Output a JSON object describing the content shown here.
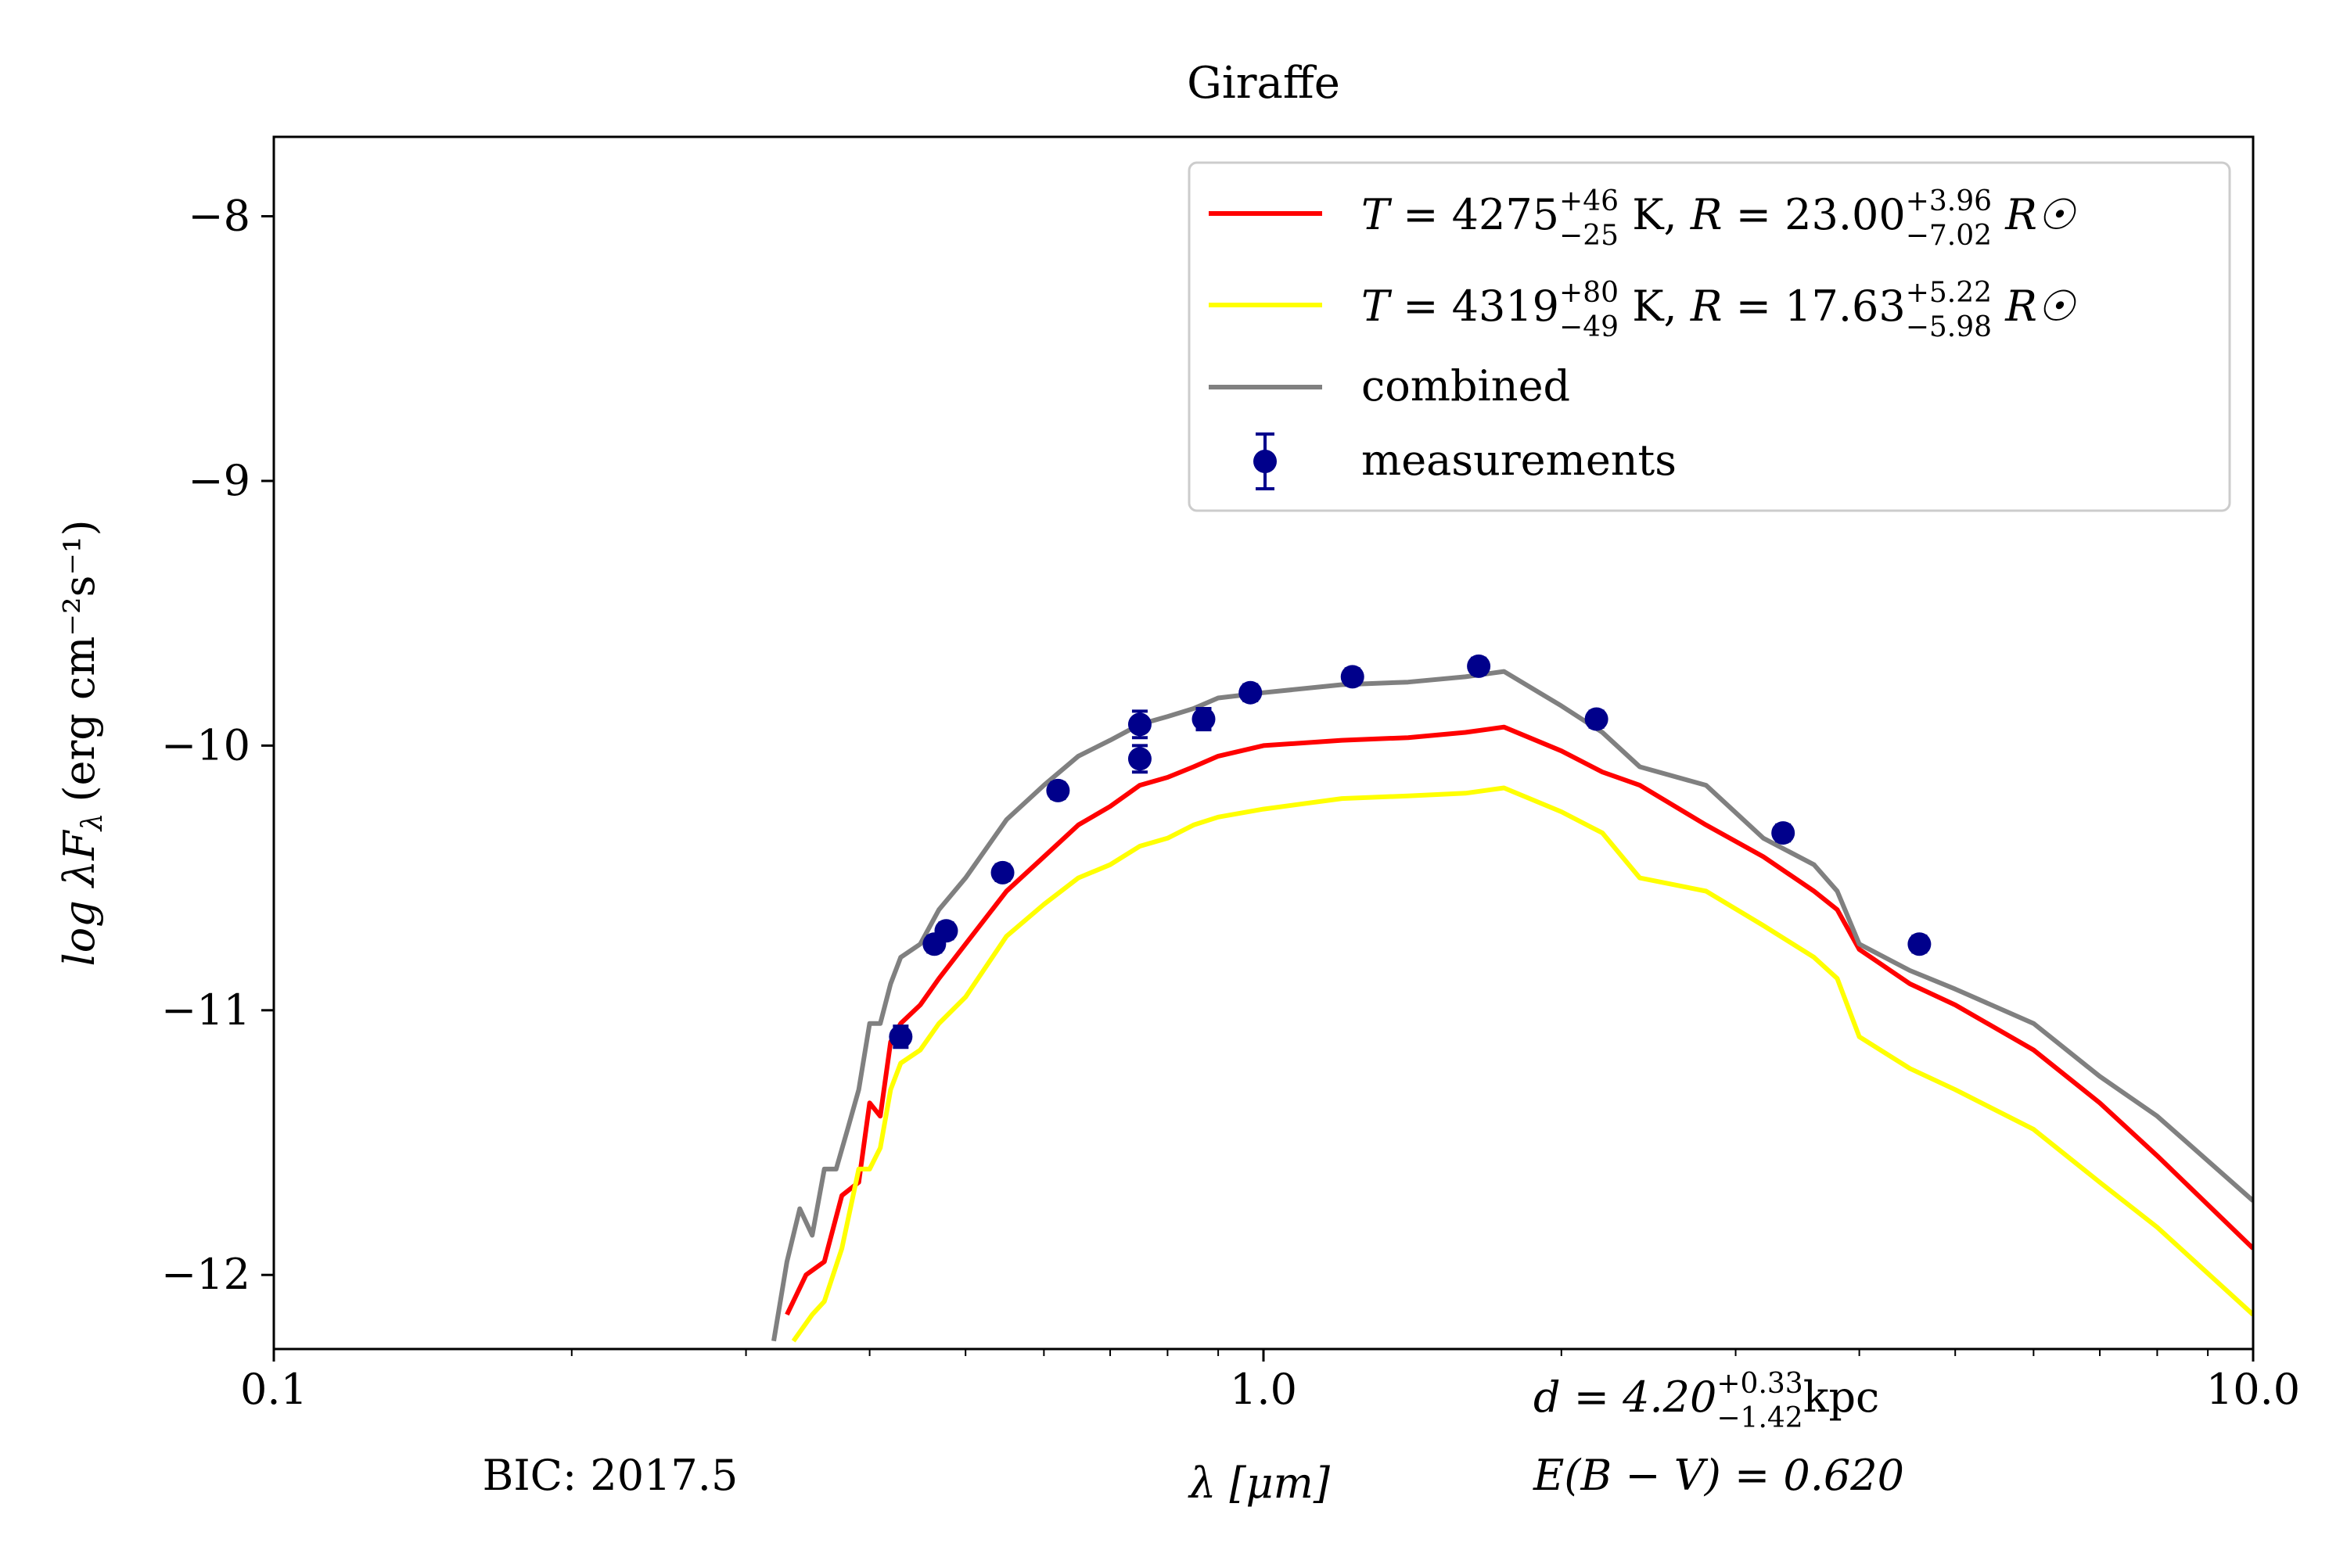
{
  "chart_data": {
    "type": "line",
    "title": "Giraffe",
    "xlabel": "λ [μm]",
    "ylabel": "log λF",
    "ylabel_sub": "λ",
    "ylabel_unit": "(erg cm⁻²s⁻¹)",
    "x_scale": "log",
    "xlim": [
      0.1,
      10.0
    ],
    "ylim": [
      -12.28,
      -7.7
    ],
    "x_ticks": [
      {
        "value": 0.1,
        "label": "0.1"
      },
      {
        "value": 1.0,
        "label": "1.0"
      },
      {
        "value": 10.0,
        "label": "10.0"
      }
    ],
    "y_ticks": [
      {
        "value": -8,
        "label": "−8"
      },
      {
        "value": -9,
        "label": "−9"
      },
      {
        "value": -10,
        "label": "−10"
      },
      {
        "value": -11,
        "label": "−11"
      },
      {
        "value": -12,
        "label": "−12"
      }
    ],
    "grid": false,
    "legend_position": "top-right",
    "series": [
      {
        "name": "T = 4275 K, R = 23.00 R☉",
        "legend": {
          "T": "4275",
          "T_up": "+46",
          "T_lo": "−25",
          "R": "23.00",
          "R_up": "+3.96",
          "R_lo": "−7.02"
        },
        "color": "#ff0000",
        "x": [
          0.33,
          0.345,
          0.36,
          0.375,
          0.39,
          0.4,
          0.41,
          0.42,
          0.43,
          0.45,
          0.47,
          0.5,
          0.55,
          0.6,
          0.65,
          0.7,
          0.75,
          0.8,
          0.85,
          0.9,
          1.0,
          1.2,
          1.4,
          1.6,
          1.75,
          2.0,
          2.2,
          2.4,
          2.8,
          3.2,
          3.6,
          3.8,
          4.0,
          4.5,
          5.0,
          6.0,
          7.0,
          8.0,
          10.0
        ],
        "y": [
          -12.15,
          -12.0,
          -11.95,
          -11.7,
          -11.65,
          -11.35,
          -11.4,
          -11.12,
          -11.05,
          -10.98,
          -10.88,
          -10.75,
          -10.55,
          -10.42,
          -10.3,
          -10.23,
          -10.15,
          -10.12,
          -10.08,
          -10.04,
          -10.0,
          -9.98,
          -9.97,
          -9.95,
          -9.93,
          -10.02,
          -10.1,
          -10.15,
          -10.3,
          -10.42,
          -10.55,
          -10.62,
          -10.77,
          -10.9,
          -10.98,
          -11.15,
          -11.35,
          -11.55,
          -11.9
        ]
      },
      {
        "name": "T = 4319 K, R = 17.63 R☉",
        "legend": {
          "T": "4319",
          "T_up": "+80",
          "T_lo": "−49",
          "R": "17.63",
          "R_up": "+5.22",
          "R_lo": "−5.98"
        },
        "color": "#ffff00",
        "x": [
          0.335,
          0.35,
          0.36,
          0.375,
          0.39,
          0.4,
          0.41,
          0.42,
          0.43,
          0.45,
          0.47,
          0.5,
          0.55,
          0.6,
          0.65,
          0.7,
          0.75,
          0.8,
          0.85,
          0.9,
          1.0,
          1.2,
          1.4,
          1.6,
          1.75,
          2.0,
          2.2,
          2.4,
          2.8,
          3.2,
          3.6,
          3.8,
          4.0,
          4.5,
          5.0,
          6.0,
          7.0,
          8.0,
          10.0
        ],
        "y": [
          -12.25,
          -12.15,
          -12.1,
          -11.9,
          -11.6,
          -11.6,
          -11.52,
          -11.3,
          -11.2,
          -11.15,
          -11.05,
          -10.95,
          -10.72,
          -10.6,
          -10.5,
          -10.45,
          -10.38,
          -10.35,
          -10.3,
          -10.27,
          -10.24,
          -10.2,
          -10.19,
          -10.18,
          -10.16,
          -10.25,
          -10.33,
          -10.5,
          -10.55,
          -10.68,
          -10.8,
          -10.88,
          -11.1,
          -11.22,
          -11.3,
          -11.45,
          -11.65,
          -11.82,
          -12.15
        ]
      },
      {
        "name": "combined",
        "color": "#808080",
        "x": [
          0.32,
          0.33,
          0.34,
          0.35,
          0.36,
          0.37,
          0.38,
          0.39,
          0.4,
          0.41,
          0.42,
          0.43,
          0.45,
          0.47,
          0.5,
          0.55,
          0.6,
          0.65,
          0.7,
          0.75,
          0.8,
          0.85,
          0.9,
          1.0,
          1.2,
          1.4,
          1.6,
          1.75,
          2.0,
          2.2,
          2.4,
          2.8,
          3.2,
          3.6,
          3.8,
          4.0,
          4.5,
          5.0,
          6.0,
          7.0,
          8.0,
          10.0
        ],
        "y": [
          -12.25,
          -11.95,
          -11.75,
          -11.85,
          -11.6,
          -11.6,
          -11.45,
          -11.3,
          -11.05,
          -11.05,
          -10.9,
          -10.8,
          -10.75,
          -10.62,
          -10.5,
          -10.28,
          -10.15,
          -10.04,
          -9.98,
          -9.92,
          -9.89,
          -9.86,
          -9.82,
          -9.8,
          -9.77,
          -9.76,
          -9.74,
          -9.72,
          -9.85,
          -9.95,
          -10.08,
          -10.15,
          -10.35,
          -10.45,
          -10.55,
          -10.75,
          -10.85,
          -10.92,
          -11.05,
          -11.25,
          -11.4,
          -11.72
        ]
      }
    ],
    "measurements": {
      "name": "measurements",
      "color": "#00008b",
      "points": [
        {
          "x": 0.43,
          "y": -11.1,
          "err": 0.04
        },
        {
          "x": 0.465,
          "y": -10.75,
          "err": 0.03
        },
        {
          "x": 0.478,
          "y": -10.7,
          "err": 0.03
        },
        {
          "x": 0.545,
          "y": -10.48,
          "err": 0.03
        },
        {
          "x": 0.62,
          "y": -10.17,
          "err": 0.03
        },
        {
          "x": 0.75,
          "y": -9.92,
          "err": 0.05
        },
        {
          "x": 0.75,
          "y": -10.05,
          "err": 0.05
        },
        {
          "x": 0.87,
          "y": -9.9,
          "err": 0.04
        },
        {
          "x": 0.97,
          "y": -9.8,
          "err": 0.03
        },
        {
          "x": 1.23,
          "y": -9.74,
          "err": 0.03
        },
        {
          "x": 1.65,
          "y": -9.7,
          "err": 0.03
        },
        {
          "x": 2.17,
          "y": -9.9,
          "err": 0.03
        },
        {
          "x": 3.35,
          "y": -10.33,
          "err": 0.03
        },
        {
          "x": 4.6,
          "y": -10.75,
          "err": 0.03
        }
      ]
    },
    "annotations": {
      "bic": "BIC: 2017.5",
      "distance": {
        "prefix": "d = 4.20",
        "up": "+0.33",
        "lo": "−1.42",
        "unit": "kpc"
      },
      "extinction": "E(B − V) = 0.620"
    }
  }
}
